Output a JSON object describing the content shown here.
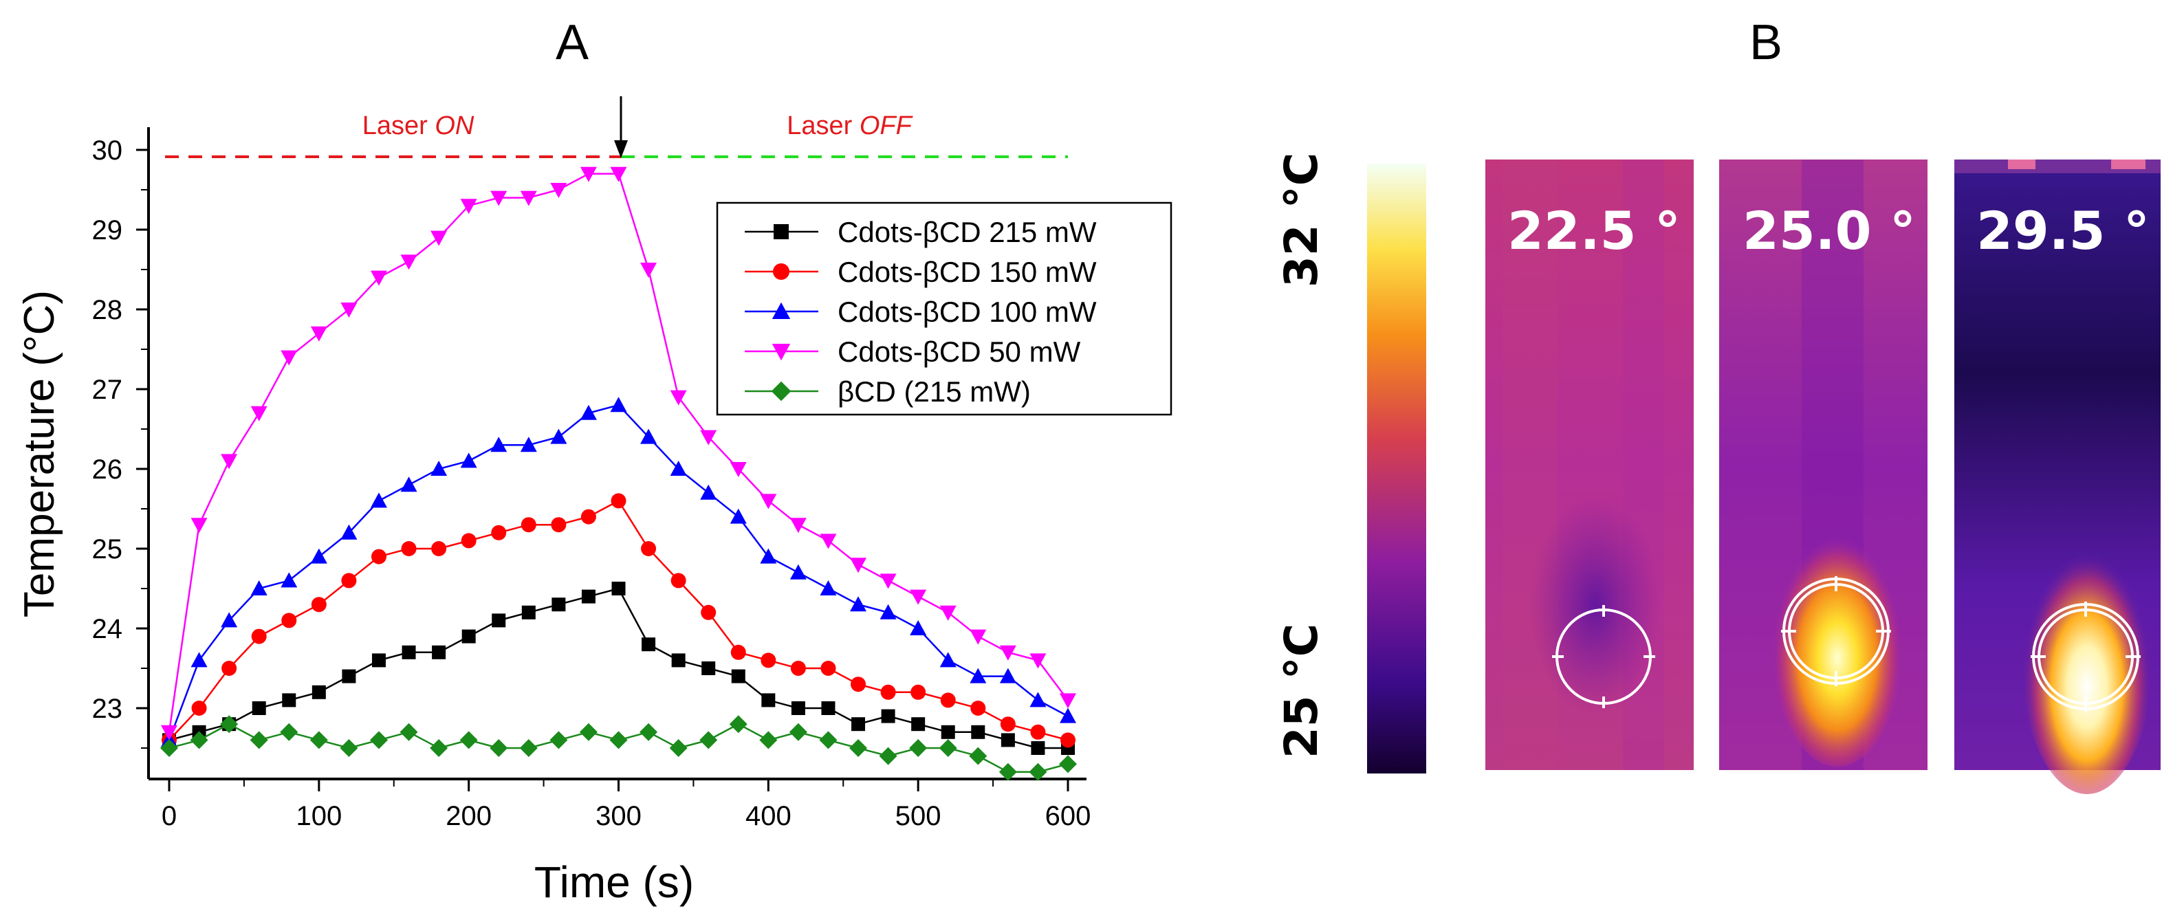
{
  "panel_a": {
    "label": "A",
    "laser_on_prefix": "Laser ",
    "laser_on_state": "ON",
    "laser_off_prefix": "Laser ",
    "laser_off_state": "OFF",
    "laser_on_color": "#e31a1c",
    "laser_off_color": "#22dd22"
  },
  "chart_data": {
    "type": "line",
    "title": "",
    "xlabel": "Time (s)",
    "ylabel": "Temperature (°C)",
    "xlim": [
      -15,
      610
    ],
    "ylim": [
      22.1,
      30.1
    ],
    "xticks": [
      0,
      100,
      200,
      300,
      400,
      500,
      600
    ],
    "yticks": [
      23,
      24,
      25,
      26,
      27,
      28,
      29,
      30
    ],
    "legend_position": "upper-right",
    "x": [
      0,
      20,
      40,
      60,
      80,
      100,
      120,
      140,
      160,
      180,
      200,
      220,
      240,
      260,
      280,
      300,
      320,
      340,
      360,
      380,
      400,
      420,
      440,
      460,
      480,
      500,
      520,
      540,
      560,
      580,
      600
    ],
    "series": [
      {
        "name": "Cdots-βCD 215 mW",
        "color": "#000000",
        "marker": "square",
        "values": [
          22.6,
          22.7,
          22.8,
          23.0,
          23.1,
          23.2,
          23.4,
          23.6,
          23.7,
          23.7,
          23.9,
          24.1,
          24.2,
          24.3,
          24.4,
          24.5,
          23.8,
          23.6,
          23.5,
          23.4,
          23.1,
          23.0,
          23.0,
          22.8,
          22.9,
          22.8,
          22.7,
          22.7,
          22.6,
          22.5,
          22.5
        ]
      },
      {
        "name": "Cdots-βCD 150 mW",
        "color": "#ff0000",
        "marker": "circle",
        "values": [
          22.6,
          23.0,
          23.5,
          23.9,
          24.1,
          24.3,
          24.6,
          24.9,
          25.0,
          25.0,
          25.1,
          25.2,
          25.3,
          25.3,
          25.4,
          25.6,
          25.0,
          24.6,
          24.2,
          23.7,
          23.6,
          23.5,
          23.5,
          23.3,
          23.2,
          23.2,
          23.1,
          23.0,
          22.8,
          22.7,
          22.6
        ]
      },
      {
        "name": "Cdots-βCD 100 mW",
        "color": "#0000ff",
        "marker": "triangle-up",
        "values": [
          22.6,
          23.6,
          24.1,
          24.5,
          24.6,
          24.9,
          25.2,
          25.6,
          25.8,
          26.0,
          26.1,
          26.3,
          26.3,
          26.4,
          26.7,
          26.8,
          26.4,
          26.0,
          25.7,
          25.4,
          24.9,
          24.7,
          24.5,
          24.3,
          24.2,
          24.0,
          23.6,
          23.4,
          23.4,
          23.1,
          22.9
        ]
      },
      {
        "name": "Cdots-βCD 50 mW",
        "color": "#ff00ff",
        "marker": "triangle-down",
        "values": [
          22.7,
          25.3,
          26.1,
          26.7,
          27.4,
          27.7,
          28.0,
          28.4,
          28.6,
          28.9,
          29.3,
          29.4,
          29.4,
          29.5,
          29.7,
          29.7,
          28.5,
          26.9,
          26.4,
          26.0,
          25.6,
          25.3,
          25.1,
          24.8,
          24.6,
          24.4,
          24.2,
          23.9,
          23.7,
          23.6,
          23.1
        ]
      },
      {
        "name": "βCD (215 mW)",
        "color": "#1a8a1a",
        "marker": "diamond",
        "values": [
          22.5,
          22.6,
          22.8,
          22.6,
          22.7,
          22.6,
          22.5,
          22.6,
          22.7,
          22.5,
          22.6,
          22.5,
          22.5,
          22.6,
          22.7,
          22.6,
          22.7,
          22.5,
          22.6,
          22.8,
          22.6,
          22.7,
          22.6,
          22.5,
          22.4,
          22.5,
          22.5,
          22.4,
          22.2,
          22.2,
          22.3
        ]
      }
    ],
    "annotations": [
      {
        "text": "Laser ON",
        "x_range": [
          0,
          300
        ],
        "y": 29.95
      },
      {
        "text": "Laser OFF",
        "x_range": [
          300,
          600
        ],
        "y": 29.95
      },
      {
        "text": "arrow at laser switch-off",
        "x": 300
      }
    ]
  },
  "panel_b": {
    "label": "B",
    "scale_max": "32 °C",
    "scale_min": "25 °C",
    "images": [
      {
        "label": "22.5 °",
        "colors": {
          "base": "#b8328c",
          "hot": "#b8328c"
        }
      },
      {
        "label": "25.0 °",
        "colors": {
          "base": "#a4269a",
          "hot": "#ffe030"
        }
      },
      {
        "label": "29.5 °",
        "colors": {
          "base": "#4a1aa0",
          "hot": "#ffffff"
        }
      }
    ]
  }
}
